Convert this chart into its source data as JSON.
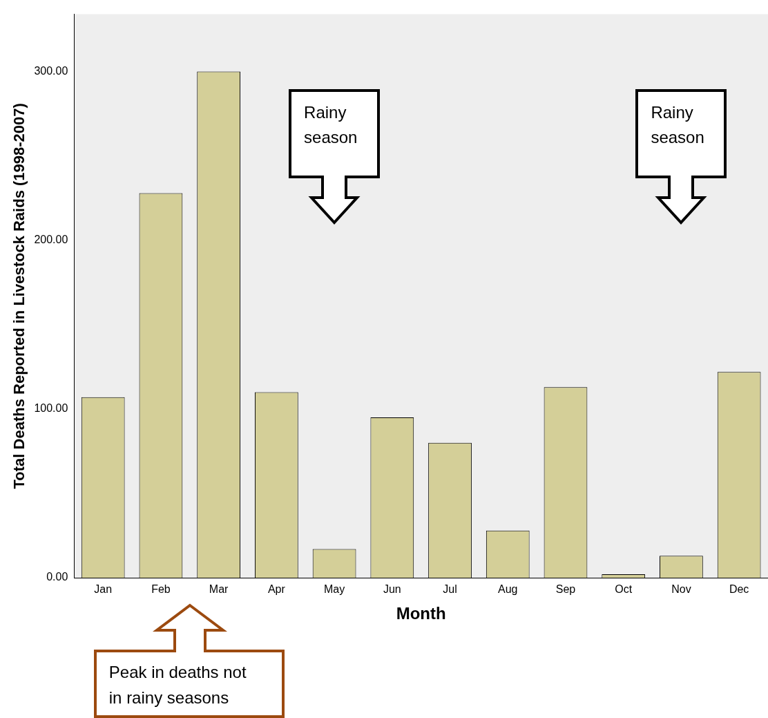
{
  "chart_data": {
    "type": "bar",
    "xlabel": "Month",
    "ylabel": "Total Deaths Reported in Livestock Raids (1998-2007)",
    "categories": [
      "Jan",
      "Feb",
      "Mar",
      "Apr",
      "May",
      "Jun",
      "Jul",
      "Aug",
      "Sep",
      "Oct",
      "Nov",
      "Dec"
    ],
    "values": [
      107,
      228,
      300,
      110,
      17,
      95,
      80,
      28,
      113,
      2,
      13,
      122
    ],
    "color": "#d4cf98",
    "ylim": [
      0,
      334
    ],
    "yticks": [
      {
        "value": 0,
        "label": "0.00"
      },
      {
        "value": 100,
        "label": "100.00"
      },
      {
        "value": 200,
        "label": "200.00"
      },
      {
        "value": 300,
        "label": "300.00"
      }
    ],
    "grid": false,
    "legend": false,
    "annotations": [
      "Rainy season",
      "Rainy season",
      "Peak in deaths not in rainy seasons"
    ]
  }
}
